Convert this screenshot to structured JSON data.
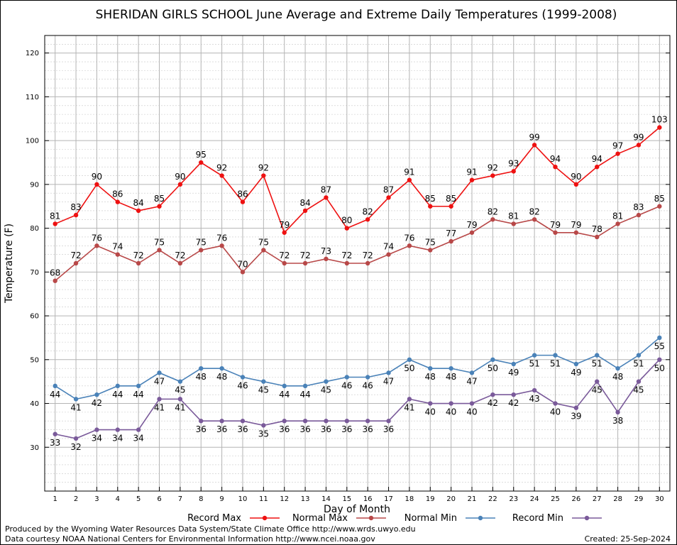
{
  "chart_data": {
    "type": "line",
    "title": "SHERIDAN GIRLS SCHOOL June Average and Extreme Daily Temperatures (1999-2008)",
    "xlabel": "Day of Month",
    "ylabel": "Temperature (F)",
    "ylim": [
      20,
      124
    ],
    "xlim": [
      0.5,
      30.5
    ],
    "y_ticks": [
      30,
      40,
      50,
      60,
      70,
      80,
      90,
      100,
      110,
      120
    ],
    "x": [
      1,
      2,
      3,
      4,
      5,
      6,
      7,
      8,
      9,
      10,
      11,
      12,
      13,
      14,
      15,
      16,
      17,
      18,
      19,
      20,
      21,
      22,
      23,
      24,
      25,
      26,
      27,
      28,
      29,
      30
    ],
    "grid": true,
    "legend_position": "bottom",
    "series": [
      {
        "name": "Record Max",
        "color": "#ee1111",
        "values": [
          81,
          83,
          90,
          86,
          84,
          85,
          90,
          95,
          92,
          86,
          92,
          79,
          84,
          87,
          80,
          82,
          87,
          91,
          85,
          85,
          91,
          92,
          93,
          99,
          94,
          90,
          94,
          97,
          99,
          103
        ]
      },
      {
        "name": "Normal Max",
        "color": "#b84848",
        "values": [
          68,
          72,
          76,
          74,
          72,
          75,
          72,
          75,
          76,
          70,
          75,
          72,
          72,
          73,
          72,
          72,
          74,
          76,
          75,
          77,
          79,
          82,
          81,
          82,
          79,
          79,
          78,
          81,
          83,
          85
        ]
      },
      {
        "name": "Normal Min",
        "color": "#4a82b8",
        "values": [
          44,
          41,
          42,
          44,
          44,
          47,
          45,
          48,
          48,
          46,
          45,
          44,
          44,
          45,
          46,
          46,
          47,
          50,
          48,
          48,
          47,
          50,
          49,
          51,
          51,
          49,
          51,
          48,
          51,
          55
        ]
      },
      {
        "name": "Record Min",
        "color": "#7a5a9a",
        "values": [
          33,
          32,
          34,
          34,
          34,
          41,
          41,
          36,
          36,
          36,
          35,
          36,
          36,
          36,
          36,
          36,
          36,
          41,
          40,
          40,
          40,
          42,
          42,
          43,
          40,
          39,
          45,
          38,
          45,
          50
        ]
      }
    ]
  },
  "footer": {
    "line1": "Produced by the Wyoming Water Resources Data System/State Climate Office http://www.wrds.uwyo.edu",
    "line2": "Data courtesy NOAA National Centers for Environmental Information http://www.ncei.noaa.gov",
    "created": "Created:  25-Sep-2024"
  }
}
